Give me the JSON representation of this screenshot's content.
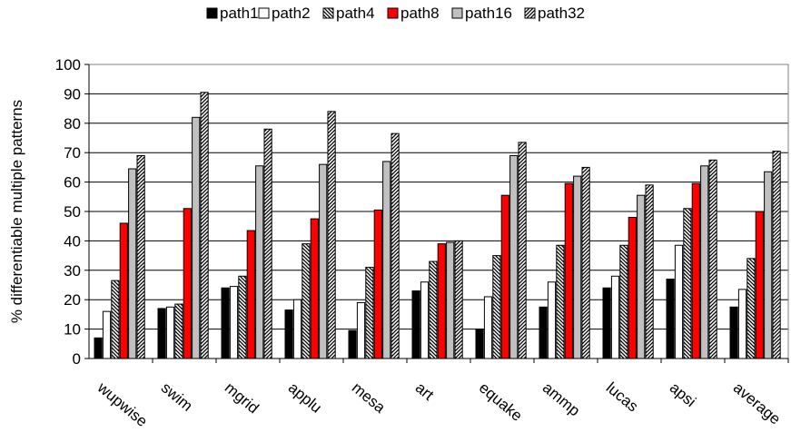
{
  "chart_data": {
    "type": "bar",
    "title": "",
    "xlabel": "",
    "ylabel": "% differentiable multiple patterns",
    "ylim": [
      0,
      100
    ],
    "yticks": [
      0,
      10,
      20,
      30,
      40,
      50,
      60,
      70,
      80,
      90,
      100
    ],
    "grid": true,
    "legend_position": "top",
    "categories": [
      "wupwise",
      "swim",
      "mgrid",
      "applu",
      "mesa",
      "art",
      "equake",
      "ammp",
      "lucas",
      "apsi",
      "average"
    ],
    "series": [
      {
        "name": "path1",
        "fill": "#000000",
        "pattern": "solid",
        "values": [
          7,
          17,
          24,
          16.5,
          9.5,
          23,
          10,
          17.5,
          24,
          27,
          17.5
        ]
      },
      {
        "name": "path2",
        "fill": "#ffffff",
        "pattern": "solid",
        "values": [
          16,
          17.5,
          24.5,
          20,
          19,
          26,
          21,
          26,
          28,
          38.5,
          23.5
        ]
      },
      {
        "name": "path4",
        "fill": "#ffffff",
        "pattern": "backslash",
        "values": [
          26.5,
          18.5,
          28,
          39,
          31,
          33,
          35,
          38.5,
          38.5,
          51,
          34
        ]
      },
      {
        "name": "path8",
        "fill": "#ff0000",
        "pattern": "solid",
        "values": [
          46,
          51,
          43.5,
          47.5,
          50.5,
          39,
          55.5,
          59.5,
          48,
          59.5,
          50
        ]
      },
      {
        "name": "path16",
        "fill": "#c0c0c0",
        "pattern": "solid",
        "values": [
          64.5,
          82,
          65.5,
          66,
          67,
          39.5,
          69,
          62,
          55.5,
          65.5,
          63.5
        ]
      },
      {
        "name": "path32",
        "fill": "#ffffff",
        "pattern": "slash",
        "values": [
          69,
          90.5,
          78,
          84,
          76.5,
          40,
          73.5,
          65,
          59,
          67.5,
          70.5
        ]
      }
    ]
  }
}
